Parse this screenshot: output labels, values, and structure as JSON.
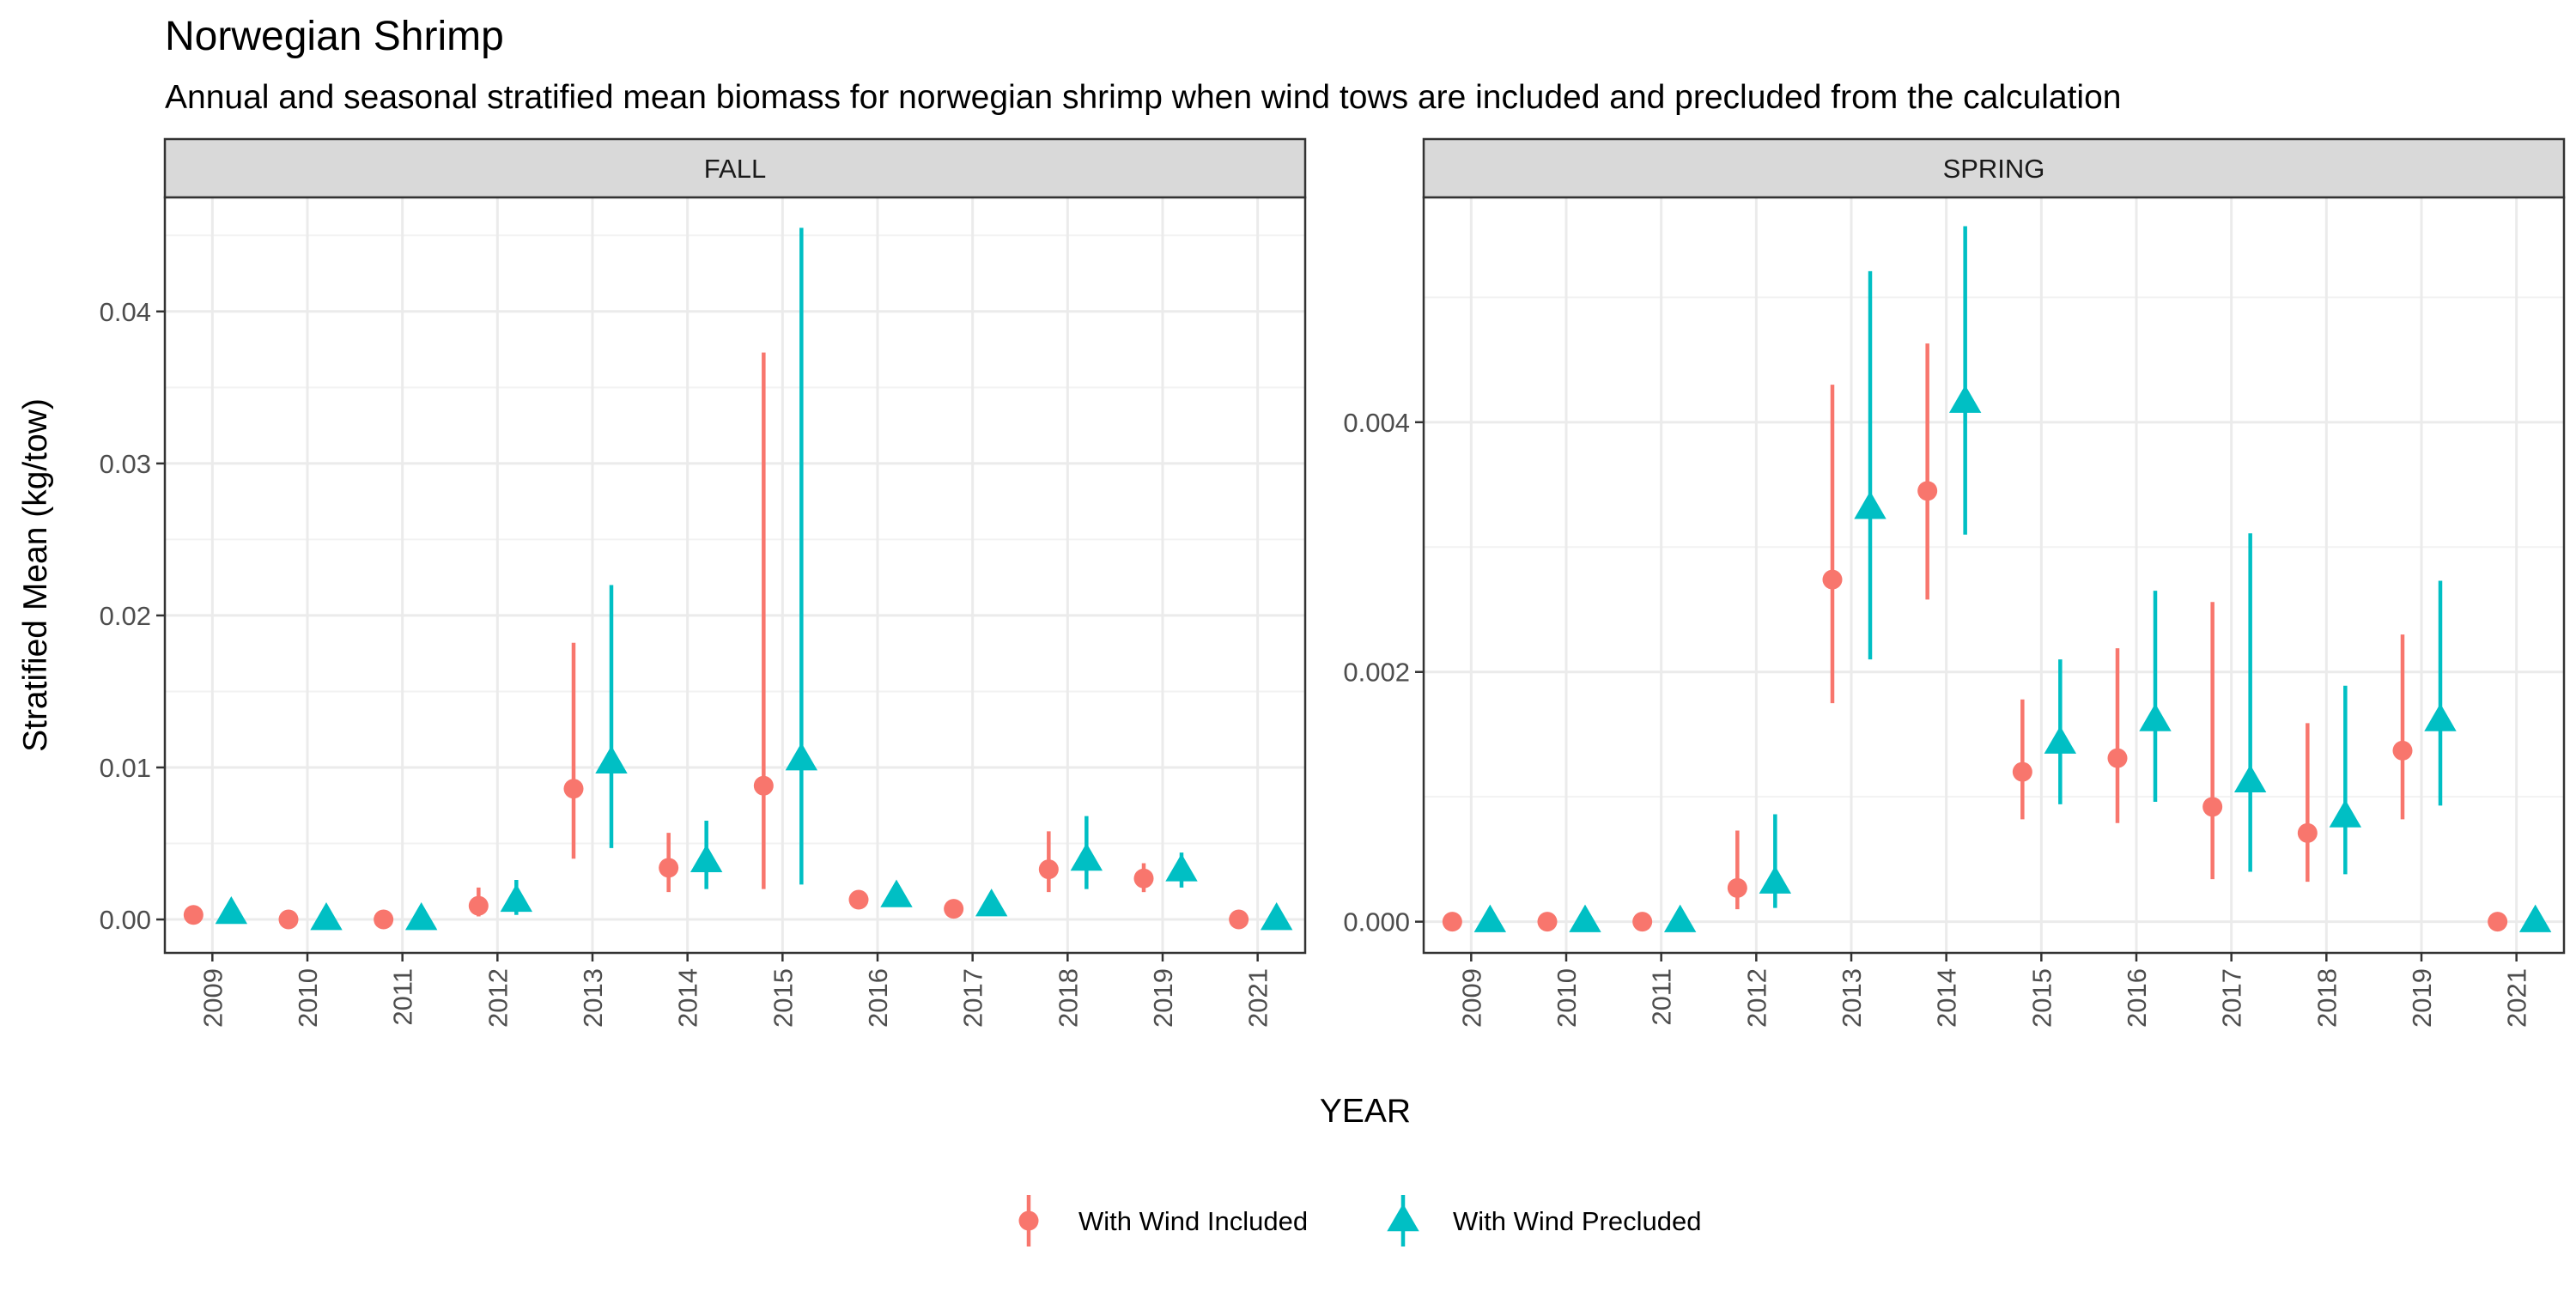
{
  "chart_data": {
    "type": "scatter",
    "title": "Norwegian Shrimp",
    "subtitle": "Annual and seasonal stratified mean biomass for norwegian shrimp when wind tows are included and precluded from the calculation",
    "xlabel": "YEAR",
    "ylabel": "Stratified Mean (kg/tow)",
    "grid": true,
    "legend_position": "bottom",
    "categories": [
      "2009",
      "2010",
      "2011",
      "2012",
      "2013",
      "2014",
      "2015",
      "2016",
      "2017",
      "2018",
      "2019",
      "2021"
    ],
    "series_styles": [
      {
        "name": "With Wind Included",
        "color": "#F8766D",
        "marker": "circle"
      },
      {
        "name": "With Wind Precluded",
        "color": "#00BFC4",
        "marker": "triangle"
      }
    ],
    "panels": [
      {
        "strip": "FALL",
        "ylim": [
          -0.0022,
          0.0475
        ],
        "yticks": [
          0.0,
          0.01,
          0.02,
          0.03,
          0.04
        ],
        "ytick_labels": [
          "0.00",
          "0.01",
          "0.02",
          "0.03",
          "0.04"
        ],
        "series": [
          {
            "name": "With Wind Included",
            "values": [
              0.0003,
              0.0,
              0.0,
              0.0009,
              0.0086,
              0.0034,
              0.0088,
              0.0013,
              0.0007,
              0.0033,
              0.0027,
              0.0
            ],
            "lower": [
              0.0,
              0.0,
              0.0,
              0.0002,
              0.004,
              0.0018,
              0.002,
              0.0009,
              0.0004,
              0.0018,
              0.0018,
              0.0
            ],
            "upper": [
              0.0007,
              0.0,
              0.0,
              0.0021,
              0.0182,
              0.0057,
              0.0373,
              0.0019,
              0.0012,
              0.0058,
              0.0037,
              0.0
            ]
          },
          {
            "name": "With Wind Precluded",
            "values": [
              0.0004,
              0.0,
              0.0,
              0.0012,
              0.0103,
              0.0038,
              0.0105,
              0.0015,
              0.0009,
              0.0039,
              0.0032,
              0.0
            ],
            "lower": [
              0.0,
              0.0,
              0.0,
              0.0003,
              0.0047,
              0.002,
              0.0023,
              0.0011,
              0.0005,
              0.002,
              0.0021,
              0.0
            ],
            "upper": [
              0.0008,
              0.0,
              0.0,
              0.0026,
              0.022,
              0.0065,
              0.0455,
              0.0022,
              0.0014,
              0.0068,
              0.0044,
              0.0
            ]
          }
        ]
      },
      {
        "strip": "SPRING",
        "ylim": [
          -0.00025,
          0.0058
        ],
        "yticks": [
          0.0,
          0.002,
          0.004
        ],
        "ytick_labels": [
          "0.000",
          "0.002",
          "0.004"
        ],
        "series": [
          {
            "name": "With Wind Included",
            "values": [
              0.0,
              0.0,
              0.0,
              0.00027,
              0.00274,
              0.00345,
              0.0012,
              0.00131,
              0.00092,
              0.00071,
              0.00137,
              0.0
            ],
            "lower": [
              0.0,
              0.0,
              0.0,
              0.0001,
              0.00175,
              0.00258,
              0.00082,
              0.00079,
              0.00034,
              0.00032,
              0.00082,
              0.0
            ],
            "upper": [
              0.0,
              0.0,
              0.0,
              0.00073,
              0.0043,
              0.00463,
              0.00178,
              0.00219,
              0.00256,
              0.00159,
              0.0023,
              0.0
            ]
          },
          {
            "name": "With Wind Precluded",
            "values": [
              0.0,
              0.0,
              0.0,
              0.00031,
              0.00331,
              0.00416,
              0.00143,
              0.00161,
              0.00112,
              0.00084,
              0.00161,
              0.0
            ],
            "lower": [
              0.0,
              0.0,
              0.0,
              0.00011,
              0.0021,
              0.0031,
              0.00094,
              0.00096,
              0.0004,
              0.00038,
              0.00093,
              0.0
            ],
            "upper": [
              0.0,
              0.0,
              0.0,
              0.00086,
              0.00521,
              0.00557,
              0.0021,
              0.00265,
              0.00311,
              0.00189,
              0.00273,
              0.0
            ]
          }
        ]
      }
    ]
  }
}
